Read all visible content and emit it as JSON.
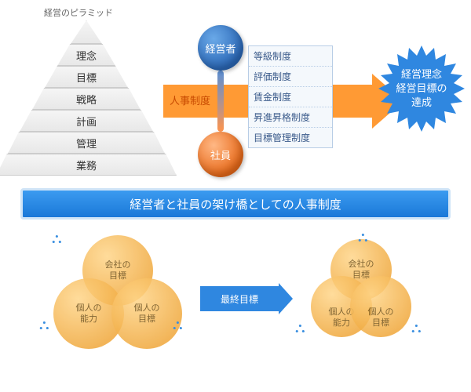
{
  "pyramid": {
    "title": "経営のピラミッド",
    "levels": [
      "理念",
      "目標",
      "戦略",
      "計画",
      "管理",
      "業務"
    ]
  },
  "bridge": {
    "top_label": "経営者",
    "bottom_label": "社員",
    "hr_label": "人事制度",
    "top_color": "#2b68b7",
    "bottom_color": "#e86a1a"
  },
  "systems": [
    "等級制度",
    "評価制度",
    "賃金制度",
    "昇進昇格制度",
    "目標管理制度"
  ],
  "starburst": {
    "line1": "経営理念",
    "line2": "経営目標の",
    "line3": "達成",
    "color": "#2f87e0"
  },
  "banner": "経営者と社員の架け橋としての人事制度",
  "venn_left": {
    "top": "会社の\n目標",
    "left": "個人の\n能力",
    "right": "個人の\n目標"
  },
  "venn_right": {
    "top": "会社の\n目標",
    "left": "個人の\n能力",
    "right": "個人の\n目標"
  },
  "goal_arrow": "最終目標",
  "colors": {
    "arrow": "#ff9a34",
    "banner": "#1a78d8",
    "venn": "#f0a83c"
  }
}
